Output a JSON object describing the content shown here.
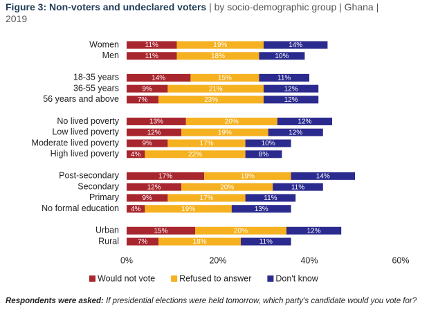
{
  "chart_data": {
    "type": "stacked_bar_horizontal",
    "title": "Figure 3: Non-voters and undeclared voters",
    "subtitle": "| by socio-demographic group | Ghana | 2019",
    "note_label": "Respondents were asked:",
    "note": "If presidential elections were held tomorrow, which party's candidate would you vote for?",
    "categories": [
      "Women",
      "Men",
      null,
      "18-35 years",
      "36-55 years",
      "56 years and above",
      null,
      "No lived poverty",
      "Low lived poverty",
      "Moderate lived poverty",
      "High lived poverty",
      null,
      "Post-secondary",
      "Secondary",
      "Primary",
      "No formal education",
      null,
      "Urban",
      "Rural"
    ],
    "series": [
      {
        "name": "Would not vote",
        "color": "#a8262e",
        "values": [
          11,
          11,
          null,
          14,
          9,
          7,
          null,
          13,
          12,
          9,
          4,
          null,
          17,
          12,
          9,
          4,
          null,
          15,
          7
        ],
        "value_labels": [
          "11%",
          "11%",
          null,
          "14%",
          "9%",
          "7%",
          null,
          "13%",
          "12%",
          "9%",
          "4%",
          null,
          "17%",
          "12%",
          "9%",
          "4%",
          null,
          "15%",
          "7%"
        ]
      },
      {
        "name": "Refused to answer",
        "color": "#f5b120",
        "values": [
          19,
          18,
          null,
          15,
          21,
          23,
          null,
          20,
          19,
          17,
          22,
          null,
          19,
          20,
          17,
          19,
          null,
          20,
          18
        ],
        "value_labels": [
          "19%",
          "18%",
          null,
          "15%",
          "21%",
          "23%",
          null,
          "20%",
          "19%",
          "17%",
          "22%",
          null,
          "19%",
          "20%",
          "17%",
          "19%",
          null,
          "20%",
          "18%"
        ]
      },
      {
        "name": "Don't know",
        "color": "#2b2a8e",
        "values": [
          14,
          10,
          null,
          11,
          12,
          12,
          null,
          12,
          12,
          10,
          8,
          null,
          14,
          11,
          11,
          13,
          null,
          12,
          11
        ],
        "value_labels": [
          "14%",
          "10%",
          null,
          "11%",
          "12%",
          "12%",
          null,
          "12%",
          "12%",
          "10%",
          "8%",
          null,
          "14%",
          "11%",
          "11%",
          "13%",
          null,
          "12%",
          "11%"
        ]
      }
    ],
    "xlim": [
      0,
      60
    ],
    "xticks": [
      {
        "value": 0,
        "label": "0%"
      },
      {
        "value": 20,
        "label": "20%"
      },
      {
        "value": 40,
        "label": "40%"
      },
      {
        "value": 60,
        "label": "60%"
      }
    ],
    "legend": "bottom"
  }
}
